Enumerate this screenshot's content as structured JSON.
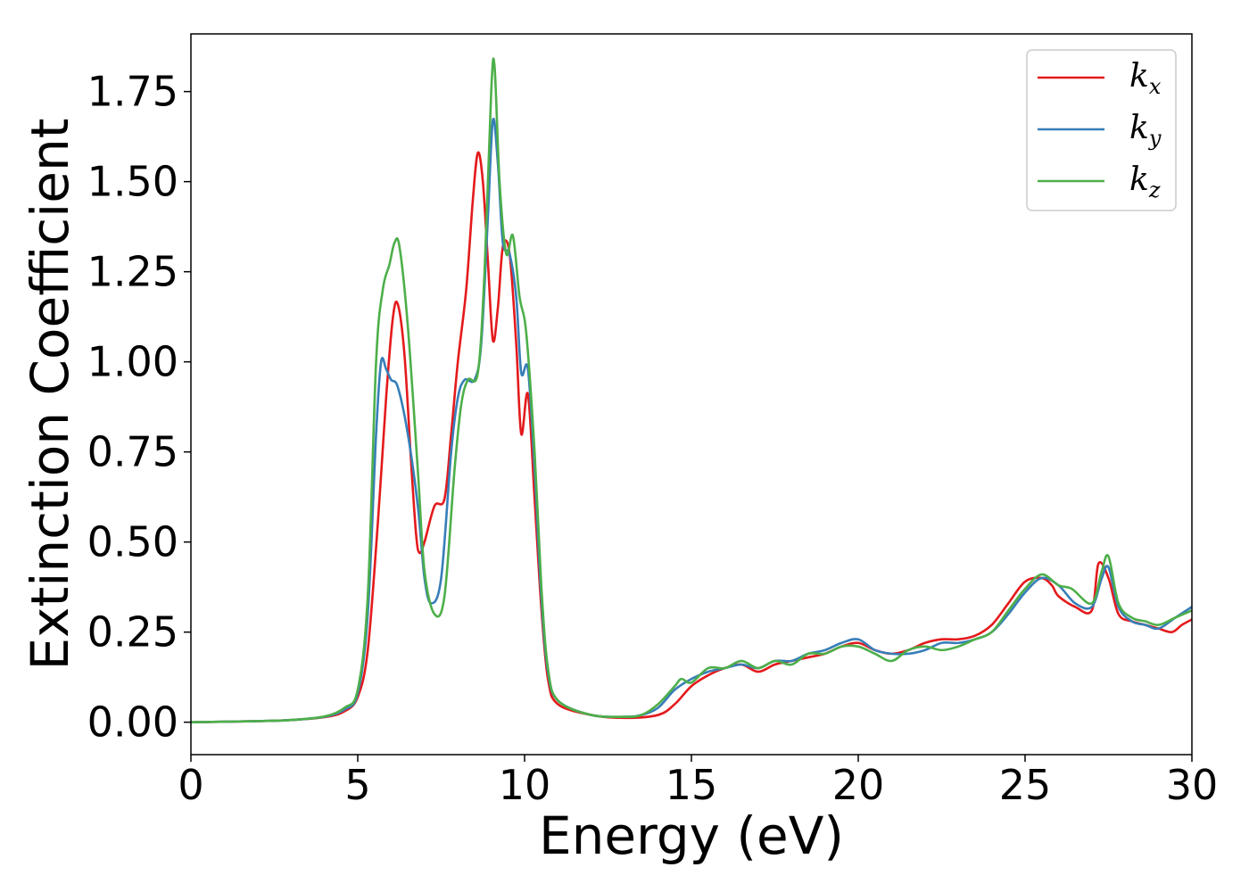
{
  "chart_data": {
    "type": "line",
    "xlabel": "Energy (eV)",
    "ylabel": "Extinction Coefficient",
    "xlim": [
      0,
      30
    ],
    "ylim": [
      -0.09,
      1.91
    ],
    "xticks": [
      "0",
      "5",
      "10",
      "15",
      "20",
      "25",
      "30"
    ],
    "yticks": [
      "0.00",
      "0.25",
      "0.50",
      "0.75",
      "1.00",
      "1.25",
      "1.50",
      "1.75"
    ],
    "grid": false,
    "legend_position": "top-right",
    "series": [
      {
        "name": "k",
        "subscript": "x",
        "color": "#e41a1c",
        "points": [
          [
            0,
            0
          ],
          [
            2,
            0.003
          ],
          [
            3,
            0.006
          ],
          [
            4,
            0.014
          ],
          [
            4.6,
            0.03
          ],
          [
            5,
            0.07
          ],
          [
            5.3,
            0.2
          ],
          [
            5.6,
            0.55
          ],
          [
            5.85,
            0.9
          ],
          [
            6.05,
            1.12
          ],
          [
            6.2,
            1.16
          ],
          [
            6.4,
            1.02
          ],
          [
            6.6,
            0.72
          ],
          [
            6.75,
            0.52
          ],
          [
            6.85,
            0.47
          ],
          [
            7.0,
            0.5
          ],
          [
            7.3,
            0.6
          ],
          [
            7.6,
            0.62
          ],
          [
            7.8,
            0.8
          ],
          [
            8.0,
            1.0
          ],
          [
            8.25,
            1.2
          ],
          [
            8.45,
            1.45
          ],
          [
            8.6,
            1.58
          ],
          [
            8.75,
            1.5
          ],
          [
            8.9,
            1.28
          ],
          [
            9.05,
            1.06
          ],
          [
            9.2,
            1.15
          ],
          [
            9.35,
            1.32
          ],
          [
            9.55,
            1.3
          ],
          [
            9.75,
            1.05
          ],
          [
            9.9,
            0.8
          ],
          [
            10.1,
            0.91
          ],
          [
            10.3,
            0.62
          ],
          [
            10.5,
            0.32
          ],
          [
            10.7,
            0.12
          ],
          [
            11.0,
            0.05
          ],
          [
            12,
            0.02
          ],
          [
            13,
            0.012
          ],
          [
            14,
            0.02
          ],
          [
            14.5,
            0.05
          ],
          [
            15,
            0.1
          ],
          [
            15.5,
            0.13
          ],
          [
            16,
            0.15
          ],
          [
            16.5,
            0.16
          ],
          [
            17,
            0.14
          ],
          [
            17.5,
            0.16
          ],
          [
            18,
            0.17
          ],
          [
            18.5,
            0.18
          ],
          [
            19,
            0.19
          ],
          [
            19.5,
            0.21
          ],
          [
            20,
            0.22
          ],
          [
            20.5,
            0.2
          ],
          [
            21,
            0.19
          ],
          [
            21.5,
            0.2
          ],
          [
            22,
            0.22
          ],
          [
            22.5,
            0.23
          ],
          [
            23,
            0.23
          ],
          [
            23.5,
            0.24
          ],
          [
            24,
            0.27
          ],
          [
            24.5,
            0.33
          ],
          [
            25,
            0.39
          ],
          [
            25.5,
            0.4
          ],
          [
            25.8,
            0.38
          ],
          [
            26,
            0.35
          ],
          [
            26.5,
            0.32
          ],
          [
            27,
            0.31
          ],
          [
            27.2,
            0.44
          ],
          [
            27.5,
            0.4
          ],
          [
            27.8,
            0.3
          ],
          [
            28.2,
            0.28
          ],
          [
            28.6,
            0.27
          ],
          [
            29,
            0.26
          ],
          [
            29.4,
            0.25
          ],
          [
            29.7,
            0.27
          ],
          [
            30,
            0.285
          ]
        ]
      },
      {
        "name": "k",
        "subscript": "y",
        "color": "#377eb8",
        "points": [
          [
            0,
            0
          ],
          [
            2,
            0.003
          ],
          [
            3,
            0.006
          ],
          [
            4,
            0.015
          ],
          [
            4.6,
            0.035
          ],
          [
            5,
            0.08
          ],
          [
            5.3,
            0.3
          ],
          [
            5.55,
            0.8
          ],
          [
            5.7,
            1.0
          ],
          [
            5.85,
            0.98
          ],
          [
            6.0,
            0.95
          ],
          [
            6.2,
            0.93
          ],
          [
            6.5,
            0.8
          ],
          [
            6.8,
            0.6
          ],
          [
            7.0,
            0.4
          ],
          [
            7.2,
            0.33
          ],
          [
            7.5,
            0.4
          ],
          [
            7.8,
            0.75
          ],
          [
            8.0,
            0.9
          ],
          [
            8.2,
            0.95
          ],
          [
            8.5,
            0.95
          ],
          [
            8.7,
            1.05
          ],
          [
            8.9,
            1.4
          ],
          [
            9.05,
            1.67
          ],
          [
            9.2,
            1.55
          ],
          [
            9.35,
            1.33
          ],
          [
            9.55,
            1.3
          ],
          [
            9.75,
            1.18
          ],
          [
            9.9,
            0.97
          ],
          [
            10.1,
            0.98
          ],
          [
            10.3,
            0.7
          ],
          [
            10.5,
            0.35
          ],
          [
            10.7,
            0.14
          ],
          [
            11.0,
            0.06
          ],
          [
            12,
            0.02
          ],
          [
            13,
            0.015
          ],
          [
            13.5,
            0.02
          ],
          [
            14,
            0.04
          ],
          [
            14.5,
            0.09
          ],
          [
            15,
            0.12
          ],
          [
            15.5,
            0.14
          ],
          [
            16,
            0.15
          ],
          [
            16.5,
            0.16
          ],
          [
            17,
            0.15
          ],
          [
            17.5,
            0.17
          ],
          [
            18,
            0.17
          ],
          [
            18.5,
            0.19
          ],
          [
            19,
            0.2
          ],
          [
            19.5,
            0.22
          ],
          [
            20,
            0.23
          ],
          [
            20.5,
            0.2
          ],
          [
            21,
            0.19
          ],
          [
            21.5,
            0.19
          ],
          [
            22,
            0.2
          ],
          [
            22.5,
            0.22
          ],
          [
            23,
            0.22
          ],
          [
            23.5,
            0.23
          ],
          [
            24,
            0.25
          ],
          [
            24.5,
            0.3
          ],
          [
            25,
            0.36
          ],
          [
            25.5,
            0.4
          ],
          [
            26,
            0.38
          ],
          [
            26.5,
            0.33
          ],
          [
            27,
            0.32
          ],
          [
            27.3,
            0.4
          ],
          [
            27.5,
            0.43
          ],
          [
            27.8,
            0.32
          ],
          [
            28.2,
            0.28
          ],
          [
            28.6,
            0.27
          ],
          [
            29,
            0.26
          ],
          [
            29.5,
            0.29
          ],
          [
            30,
            0.32
          ]
        ]
      },
      {
        "name": "k",
        "subscript": "z",
        "color": "#4daf4a",
        "points": [
          [
            0,
            0
          ],
          [
            2,
            0.003
          ],
          [
            3,
            0.006
          ],
          [
            4,
            0.016
          ],
          [
            4.6,
            0.04
          ],
          [
            5,
            0.09
          ],
          [
            5.3,
            0.35
          ],
          [
            5.55,
            1.0
          ],
          [
            5.75,
            1.2
          ],
          [
            5.95,
            1.27
          ],
          [
            6.1,
            1.33
          ],
          [
            6.25,
            1.32
          ],
          [
            6.5,
            1.1
          ],
          [
            6.8,
            0.7
          ],
          [
            7.0,
            0.42
          ],
          [
            7.3,
            0.3
          ],
          [
            7.6,
            0.35
          ],
          [
            7.9,
            0.7
          ],
          [
            8.1,
            0.88
          ],
          [
            8.3,
            0.95
          ],
          [
            8.6,
            0.97
          ],
          [
            8.8,
            1.25
          ],
          [
            9.0,
            1.75
          ],
          [
            9.1,
            1.82
          ],
          [
            9.25,
            1.5
          ],
          [
            9.45,
            1.3
          ],
          [
            9.65,
            1.35
          ],
          [
            9.85,
            1.18
          ],
          [
            10.05,
            1.08
          ],
          [
            10.3,
            0.75
          ],
          [
            10.5,
            0.38
          ],
          [
            10.7,
            0.15
          ],
          [
            11.0,
            0.06
          ],
          [
            12,
            0.02
          ],
          [
            13,
            0.015
          ],
          [
            13.5,
            0.02
          ],
          [
            14,
            0.05
          ],
          [
            14.5,
            0.1
          ],
          [
            14.7,
            0.12
          ],
          [
            15,
            0.11
          ],
          [
            15.5,
            0.15
          ],
          [
            16,
            0.15
          ],
          [
            16.5,
            0.17
          ],
          [
            17,
            0.15
          ],
          [
            17.5,
            0.17
          ],
          [
            18,
            0.16
          ],
          [
            18.5,
            0.19
          ],
          [
            19,
            0.19
          ],
          [
            19.5,
            0.21
          ],
          [
            20,
            0.21
          ],
          [
            20.5,
            0.19
          ],
          [
            21,
            0.17
          ],
          [
            21.5,
            0.2
          ],
          [
            22,
            0.21
          ],
          [
            22.5,
            0.2
          ],
          [
            23,
            0.21
          ],
          [
            23.5,
            0.23
          ],
          [
            24,
            0.25
          ],
          [
            24.5,
            0.31
          ],
          [
            25,
            0.37
          ],
          [
            25.5,
            0.41
          ],
          [
            26,
            0.38
          ],
          [
            26.4,
            0.37
          ],
          [
            27,
            0.33
          ],
          [
            27.3,
            0.42
          ],
          [
            27.5,
            0.46
          ],
          [
            27.8,
            0.33
          ],
          [
            28.2,
            0.29
          ],
          [
            28.6,
            0.28
          ],
          [
            29,
            0.27
          ],
          [
            29.5,
            0.29
          ],
          [
            30,
            0.31
          ]
        ]
      }
    ]
  }
}
